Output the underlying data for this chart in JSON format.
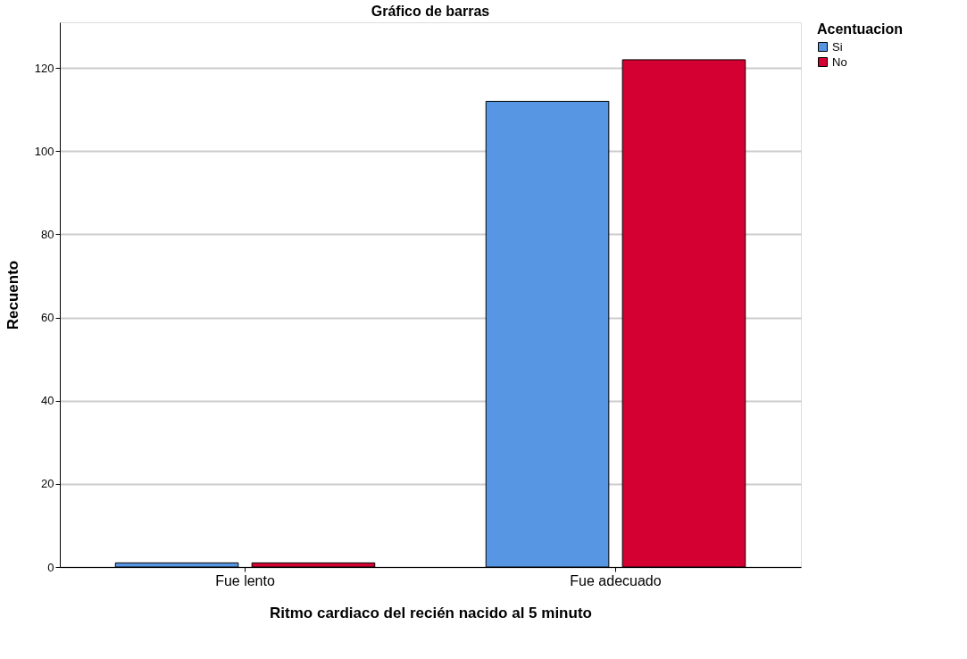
{
  "chart_data": {
    "type": "bar",
    "title": "Gráfico de barras",
    "xlabel": "Ritmo cardiaco del recién nacido al 5 minuto",
    "ylabel": "Recuento",
    "legend_title": "Acentuacion",
    "categories": [
      "Fue lento",
      "Fue adecuado"
    ],
    "series": [
      {
        "name": "Si",
        "color": "#5796e3",
        "values": [
          1,
          112
        ]
      },
      {
        "name": "No",
        "color": "#d50032",
        "values": [
          1,
          122
        ]
      }
    ],
    "ylim": [
      0,
      131
    ],
    "yticks": [
      0,
      20,
      40,
      60,
      80,
      100,
      120
    ],
    "grid": "y",
    "legend": "top right"
  }
}
